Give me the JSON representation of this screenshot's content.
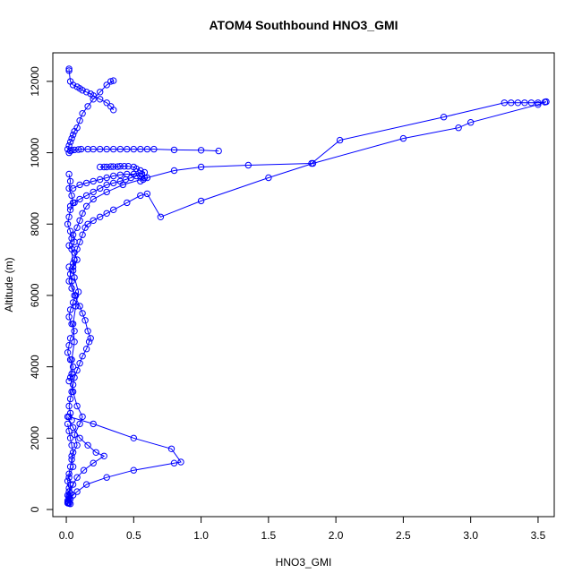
{
  "chart_data": {
    "type": "line",
    "title": "ATOM4 Southbound HNO3_GMI",
    "xlabel": "HNO3_GMI",
    "ylabel": "Altitude (m)",
    "xlim": [
      -0.1,
      3.62
    ],
    "ylim": [
      -200,
      12800
    ],
    "xticks": [
      0.0,
      0.5,
      1.0,
      1.5,
      2.0,
      2.5,
      3.0,
      3.5
    ],
    "xtick_labels": [
      "0.0",
      "0.5",
      "1.0",
      "1.5",
      "2.0",
      "2.5",
      "3.0",
      "3.5"
    ],
    "yticks": [
      0,
      2000,
      4000,
      6000,
      8000,
      10000,
      12000
    ],
    "ytick_labels": [
      "0",
      "2000",
      "4000",
      "6000",
      "8000",
      "10000",
      "12000"
    ],
    "grid": false,
    "marker": "open-circle",
    "color": "#0000ff",
    "series": [
      {
        "x": [
          0.01,
          0.02,
          0.03,
          0.02,
          0.05,
          0.04,
          0.08,
          0.06,
          0.1,
          0.12,
          0.08,
          0.05,
          0.03,
          0.04,
          0.06,
          0.05,
          0.07,
          0.09,
          0.06,
          0.05,
          0.04,
          0.06,
          0.05,
          0.08,
          0.1,
          0.12,
          0.15,
          0.2,
          0.3,
          0.42,
          0.6,
          0.8,
          1.0,
          1.35,
          1.82,
          2.03,
          2.8,
          3.25,
          3.3,
          3.35,
          3.4,
          3.45,
          3.5,
          3.55,
          3.56
        ],
        "y": [
          200,
          400,
          700,
          900,
          1200,
          1500,
          1800,
          2100,
          2400,
          2600,
          2900,
          3300,
          3700,
          4200,
          4700,
          5200,
          5700,
          6100,
          6500,
          6900,
          7300,
          7500,
          7700,
          7900,
          8100,
          8300,
          8500,
          8700,
          8900,
          9100,
          9300,
          9500,
          9600,
          9650,
          9700,
          10350,
          11000,
          11400,
          11400,
          11400,
          11400,
          11400,
          11400,
          11420,
          11430
        ]
      },
      {
        "x": [
          3.56,
          3.5,
          3.0,
          2.91,
          2.5,
          1.83,
          1.5,
          1.0,
          0.7,
          0.6,
          0.55,
          0.45,
          0.35,
          0.3,
          0.25,
          0.2,
          0.16,
          0.14,
          0.12,
          0.1,
          0.08,
          0.06,
          0.05
        ],
        "y": [
          11430,
          11350,
          10850,
          10700,
          10400,
          9700,
          9300,
          8650,
          8200,
          8850,
          8800,
          8600,
          8400,
          8300,
          8200,
          8100,
          8000,
          7900,
          7700,
          7500,
          7300,
          7000,
          6700
        ]
      },
      {
        "x": [
          0.02,
          0.03,
          0.04,
          0.06,
          0.09,
          0.11,
          0.16,
          0.2,
          0.25,
          0.3,
          0.35,
          0.4,
          0.45,
          0.5,
          0.55,
          0.6,
          0.65,
          0.8,
          1.0,
          1.13
        ],
        "y": [
          10000,
          10050,
          10070,
          10080,
          10090,
          10100,
          10100,
          10100,
          10100,
          10100,
          10100,
          10100,
          10100,
          10100,
          10100,
          10100,
          10100,
          10080,
          10070,
          10050
        ]
      },
      {
        "x": [
          0.25,
          0.28,
          0.3,
          0.33,
          0.35,
          0.38,
          0.4,
          0.43,
          0.46,
          0.5,
          0.52,
          0.55,
          0.58,
          0.56,
          0.52,
          0.48,
          0.44,
          0.4,
          0.35,
          0.3,
          0.25,
          0.2,
          0.15,
          0.1,
          0.06,
          0.03
        ],
        "y": [
          9600,
          9600,
          9600,
          9610,
          9610,
          9610,
          9620,
          9620,
          9620,
          9600,
          9550,
          9500,
          9450,
          9400,
          9350,
          9300,
          9250,
          9200,
          9150,
          9100,
          9000,
          8900,
          8800,
          8700,
          8600,
          8500
        ]
      },
      {
        "x": [
          0.02,
          0.03,
          0.02,
          0.04,
          0.05,
          0.03,
          0.02,
          0.01,
          0.03,
          0.04,
          0.02,
          0.06,
          0.08,
          0.05,
          0.03,
          0.02,
          0.04,
          0.07,
          0.05,
          0.03,
          0.02,
          0.04,
          0.06,
          0.03,
          0.02,
          0.01,
          0.03,
          0.05,
          0.04,
          0.02
        ],
        "y": [
          9400,
          9200,
          9000,
          8800,
          8600,
          8400,
          8200,
          8000,
          7800,
          7600,
          7400,
          7200,
          7000,
          6800,
          6600,
          6400,
          6200,
          6000,
          5800,
          5600,
          5400,
          5200,
          5000,
          4800,
          4600,
          4400,
          4200,
          4000,
          3800,
          3600
        ]
      },
      {
        "x": [
          0.02,
          0.04,
          0.06,
          0.1,
          0.12,
          0.14,
          0.16,
          0.18,
          0.17,
          0.15,
          0.12,
          0.1,
          0.08,
          0.06,
          0.05,
          0.04,
          0.03,
          0.02,
          0.03,
          0.04
        ],
        "y": [
          6800,
          6400,
          6000,
          5700,
          5500,
          5300,
          5000,
          4800,
          4700,
          4500,
          4300,
          4100,
          3900,
          3700,
          3500,
          3300,
          3100,
          2900,
          2700,
          2500
        ]
      },
      {
        "x": [
          0.02,
          0.2,
          0.5,
          0.78,
          0.85,
          0.8,
          0.5,
          0.3,
          0.15,
          0.08,
          0.05,
          0.03,
          0.02
        ],
        "y": [
          2600,
          2400,
          2000,
          1700,
          1330,
          1300,
          1100,
          900,
          700,
          500,
          400,
          300,
          200
        ]
      },
      {
        "x": [
          0.01,
          0.05,
          0.1,
          0.16,
          0.22,
          0.28,
          0.2,
          0.13,
          0.08,
          0.05,
          0.02
        ],
        "y": [
          2600,
          2300,
          2000,
          1800,
          1600,
          1500,
          1300,
          1100,
          900,
          700,
          500
        ]
      },
      {
        "x": [
          0.02,
          0.02,
          0.03,
          0.05,
          0.08,
          0.1,
          0.12,
          0.15,
          0.18,
          0.2,
          0.25,
          0.3,
          0.33,
          0.35
        ],
        "y": [
          12350,
          12300,
          12000,
          11900,
          11850,
          11800,
          11750,
          11700,
          11650,
          11600,
          11500,
          11400,
          11300,
          11200
        ]
      },
      {
        "x": [
          0.33,
          0.35,
          0.3,
          0.25,
          0.2,
          0.16,
          0.12,
          0.1,
          0.08,
          0.06,
          0.05,
          0.04,
          0.03,
          0.02,
          0.01
        ],
        "y": [
          12000,
          12020,
          11900,
          11700,
          11500,
          11300,
          11100,
          10900,
          10700,
          10600,
          10500,
          10400,
          10300,
          10200,
          10100
        ]
      },
      {
        "x": [
          0.01,
          0.02,
          0.03,
          0.04,
          0.05,
          0.04,
          0.03,
          0.02,
          0.01,
          0.02,
          0.03,
          0.02,
          0.01,
          0.02,
          0.01,
          0.02,
          0.03,
          0.01,
          0.02,
          0.01,
          0.02
        ],
        "y": [
          2400,
          2200,
          2000,
          1800,
          1600,
          1400,
          1200,
          1000,
          800,
          600,
          450,
          350,
          250,
          200,
          180,
          170,
          160,
          200,
          300,
          400,
          500
        ]
      },
      {
        "x": [
          0.05,
          0.1,
          0.15,
          0.2,
          0.25,
          0.3,
          0.35,
          0.4,
          0.45,
          0.5,
          0.55,
          0.58,
          0.57,
          0.55
        ],
        "y": [
          9000,
          9100,
          9150,
          9200,
          9250,
          9300,
          9350,
          9380,
          9400,
          9400,
          9350,
          9300,
          9250,
          9200
        ]
      }
    ]
  }
}
